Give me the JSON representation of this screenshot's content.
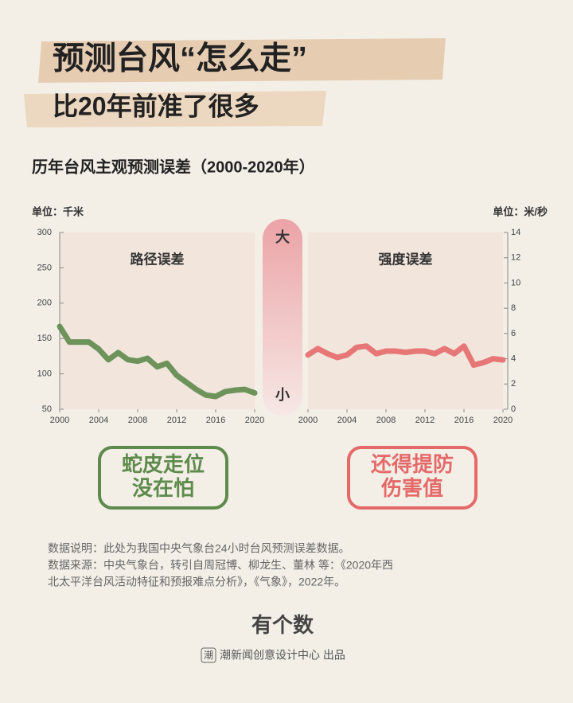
{
  "header": {
    "title": "预测台风“怎么走”",
    "subtitle": "比20年前准了很多"
  },
  "section_title": "历年台风主观预测误差（2000-2020年）",
  "chart_data": [
    {
      "type": "line",
      "title": "路径误差",
      "y_label": "单位：千米",
      "x": [
        2000,
        2001,
        2002,
        2003,
        2004,
        2005,
        2006,
        2007,
        2008,
        2009,
        2010,
        2011,
        2012,
        2013,
        2014,
        2015,
        2016,
        2017,
        2018,
        2019,
        2020
      ],
      "series": [
        {
          "color": "#5e8a4c",
          "values": [
            167,
            145,
            145,
            145,
            135,
            120,
            130,
            120,
            118,
            122,
            110,
            115,
            98,
            88,
            78,
            70,
            68,
            75,
            77,
            78,
            73
          ]
        }
      ],
      "xlim": [
        2000,
        2020
      ],
      "xticks": [
        2000,
        2004,
        2008,
        2012,
        2016,
        2020
      ],
      "ylim": [
        50,
        300
      ],
      "yticks": [
        50,
        100,
        150,
        200,
        250,
        300
      ],
      "y_axis_side": "left"
    },
    {
      "type": "line",
      "title": "强度误差",
      "y_label": "单位：米/秒",
      "x": [
        2000,
        2001,
        2002,
        2003,
        2004,
        2005,
        2006,
        2007,
        2008,
        2009,
        2010,
        2011,
        2012,
        2013,
        2014,
        2015,
        2016,
        2017,
        2018,
        2019,
        2020
      ],
      "series": [
        {
          "color": "#e46a6a",
          "values": [
            4.3,
            4.8,
            4.4,
            4.1,
            4.3,
            4.9,
            5.0,
            4.4,
            4.6,
            4.6,
            4.5,
            4.6,
            4.6,
            4.4,
            4.8,
            4.4,
            5.0,
            3.5,
            3.7,
            4.0,
            3.9
          ]
        }
      ],
      "xlim": [
        2000,
        2020
      ],
      "xticks": [
        2000,
        2004,
        2008,
        2012,
        2016,
        2020
      ],
      "ylim": [
        0,
        14
      ],
      "yticks": [
        0,
        2,
        4,
        6,
        8,
        10,
        12,
        14
      ],
      "y_axis_side": "right"
    }
  ],
  "scale": {
    "high": "大",
    "low": "小"
  },
  "stamps": [
    {
      "lines": [
        "蛇皮走位",
        "没在怕"
      ],
      "color": "#5e8a4c"
    },
    {
      "lines": [
        "还得提防",
        "伤害值"
      ],
      "color": "#e46a6a"
    }
  ],
  "notes": [
    "数据说明：此处为我国中央气象台24小时台风预测误差数据。",
    "数据来源：中央气象台，转引自周冠博、柳龙生、董林 等：《2020年西",
    "北太平洋台风活动特征和预报难点分析》，《气象》，2022年。"
  ],
  "footer": {
    "logo": "有个数",
    "badge": "潮",
    "credit": "潮新闻创意设计中心 出品"
  }
}
